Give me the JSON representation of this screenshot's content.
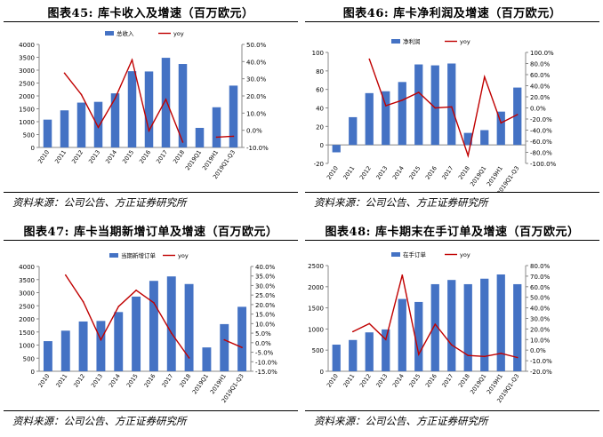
{
  "colors": {
    "bar": "#4472C4",
    "line": "#C00000"
  },
  "panels": [
    {
      "title": "图表45:   库卡收入及增速（百万欧元）",
      "source": "资料来源：公司公告、方正证券研究所",
      "chart_data": {
        "type": "bar",
        "categories": [
          "2010",
          "2011",
          "2012",
          "2013",
          "2014",
          "2015",
          "2016",
          "2017",
          "2018",
          "2019Q1",
          "2019H1",
          "2019Q1-Q3"
        ],
        "series": [
          {
            "name": "总收入",
            "type": "bar",
            "axis": "left",
            "values": [
              1080,
              1440,
              1740,
              1770,
              2100,
              2960,
              2950,
              3480,
              3240,
              760,
              1560,
              2400
            ]
          },
          {
            "name": "yoy",
            "type": "line",
            "axis": "right",
            "values": [
              null,
              33.3,
              20.8,
              1.7,
              18.6,
              41.0,
              -0.3,
              18.0,
              -6.9,
              null,
              -4.0,
              -3.5
            ]
          }
        ],
        "ylim_left": [
          0,
          4000
        ],
        "yticks_left": [
          0,
          500,
          1000,
          1500,
          2000,
          2500,
          3000,
          3500,
          4000
        ],
        "yticklabels_left": [
          "0",
          "500",
          "1000",
          "1500",
          "2000",
          "2500",
          "3000",
          "3500",
          "4000"
        ],
        "ylim_right": [
          -10,
          50
        ],
        "yticks_right": [
          -10,
          0,
          10,
          20,
          30,
          40,
          50
        ],
        "yticklabels_right": [
          "-10.0%",
          "0.0%",
          "10.0%",
          "20.0%",
          "30.0%",
          "40.0%",
          "50.0%"
        ],
        "legend": "top-center"
      }
    },
    {
      "title": "图表46:   库卡净利润及增速（百万欧元）",
      "source": "资料来源：公司公告、方正证券研究所",
      "chart_data": {
        "type": "bar",
        "categories": [
          "2010",
          "2011",
          "2012",
          "2013",
          "2014",
          "2015",
          "2016",
          "2017",
          "2018",
          "2019Q1",
          "2019H1",
          "2019Q1-Q3"
        ],
        "series": [
          {
            "name": "净利润",
            "type": "bar",
            "axis": "left",
            "values": [
              -8,
              30,
              56,
              58,
              68,
              87,
              86,
              88,
              13,
              16,
              36,
              62
            ]
          },
          {
            "name": "yoy",
            "type": "line",
            "axis": "right",
            "values": [
              null,
              null,
              88,
              4,
              14,
              28,
              0,
              2,
              -86,
              56,
              -27,
              -12
            ]
          }
        ],
        "ylim_left": [
          -20,
          100
        ],
        "yticks_left": [
          -20,
          0,
          20,
          40,
          60,
          80,
          100
        ],
        "yticklabels_left": [
          "-20",
          "0",
          "20",
          "40",
          "60",
          "80",
          "100"
        ],
        "ylim_right": [
          -100,
          100
        ],
        "yticks_right": [
          -100,
          -80,
          -60,
          -40,
          -20,
          0,
          20,
          40,
          60,
          80,
          100
        ],
        "yticklabels_right": [
          "-100.0%",
          "-80.0%",
          "-60.0%",
          "-40.0%",
          "-20.0%",
          "0.0%",
          "20.0%",
          "40.0%",
          "60.0%",
          "80.0%",
          "100.0%"
        ],
        "legend": "top-center"
      }
    },
    {
      "title": "图表47:   库卡当期新增订单及增速（百万欧元）",
      "source": "资料来源：公司公告、方正证券研究所",
      "chart_data": {
        "type": "bar",
        "categories": [
          "2010",
          "2011",
          "2012",
          "2013",
          "2014",
          "2015",
          "2016",
          "2017",
          "2018",
          "2019Q1",
          "2019H1",
          "2019Q1-Q3"
        ],
        "series": [
          {
            "name": "当期新增订单",
            "type": "bar",
            "axis": "left",
            "values": [
              1150,
              1550,
              1900,
              1920,
              2260,
              2850,
              3450,
              3620,
              3330,
              910,
              1800,
              2460
            ]
          },
          {
            "name": "yoy",
            "type": "line",
            "axis": "right",
            "values": [
              null,
              35.5,
              21.5,
              1.5,
              19.0,
              27.5,
              21.0,
              5.0,
              -8.0,
              null,
              1.5,
              -2.5
            ]
          }
        ],
        "ylim_left": [
          0,
          4000
        ],
        "yticks_left": [
          0,
          500,
          1000,
          1500,
          2000,
          2500,
          3000,
          3500,
          4000
        ],
        "yticklabels_left": [
          "0",
          "500",
          "1000",
          "1500",
          "2000",
          "2500",
          "3000",
          "3500",
          "4000"
        ],
        "ylim_right": [
          -15,
          40
        ],
        "yticks_right": [
          -15,
          -10,
          -5,
          0,
          5,
          10,
          15,
          20,
          25,
          30,
          35,
          40
        ],
        "yticklabels_right": [
          "-15.0%",
          "-10.0%",
          "-5.0%",
          "0.0%",
          "5.0%",
          "10.0%",
          "15.0%",
          "20.0%",
          "25.0%",
          "30.0%",
          "35.0%",
          "40.0%"
        ],
        "legend": "top-center"
      }
    },
    {
      "title": "图表48:   库卡期末在手订单及增速（百万欧元）",
      "source": "资料来源：公司公告、方正证券研究所",
      "chart_data": {
        "type": "bar",
        "categories": [
          "2010",
          "2011",
          "2012",
          "2013",
          "2014",
          "2015",
          "2016",
          "2017",
          "2018",
          "2019Q1",
          "2019H1",
          "2019Q1-Q3"
        ],
        "series": [
          {
            "name": "在手订单",
            "type": "bar",
            "axis": "left",
            "values": [
              630,
              740,
              920,
              990,
              1710,
              1640,
              2060,
              2160,
              2060,
              2190,
              2290,
              2060
            ]
          },
          {
            "name": "yoy",
            "type": "line",
            "axis": "right",
            "values": [
              null,
              17.5,
              25.0,
              10.0,
              71.0,
              -4.0,
              24.5,
              5.0,
              -5.0,
              -6.0,
              -3.0,
              -7.0
            ]
          }
        ],
        "ylim_left": [
          0,
          2500
        ],
        "yticks_left": [
          0,
          500,
          1000,
          1500,
          2000,
          2500
        ],
        "yticklabels_left": [
          "0",
          "500",
          "1000",
          "1500",
          "2000",
          "2500"
        ],
        "ylim_right": [
          -20,
          80
        ],
        "yticks_right": [
          -20,
          -10,
          0,
          10,
          20,
          30,
          40,
          50,
          60,
          70,
          80
        ],
        "yticklabels_right": [
          "-20.0%",
          "-10.0%",
          "0.0%",
          "10.0%",
          "20.0%",
          "30.0%",
          "40.0%",
          "50.0%",
          "60.0%",
          "70.0%",
          "80.0%"
        ],
        "legend": "top-center"
      }
    }
  ]
}
